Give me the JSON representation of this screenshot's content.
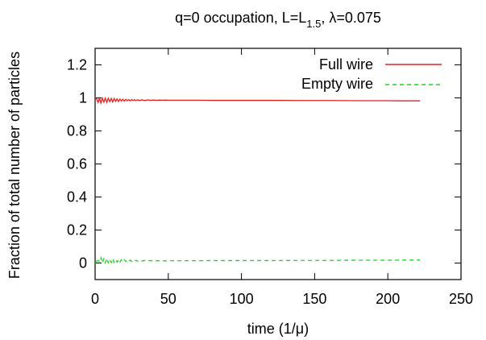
{
  "chart_data": {
    "type": "line",
    "title": {
      "prefix": "q=0 occupation, L=L",
      "subscript": "1.5",
      "suffix": ", λ=0.075"
    },
    "xlabel": "time (1/μ)",
    "ylabel": "Fraction of total number of particles",
    "xlim": [
      0,
      250
    ],
    "ylim": [
      -0.1,
      1.3
    ],
    "xticks": [
      0,
      50,
      100,
      150,
      200,
      250
    ],
    "yticks": [
      0,
      0.2,
      0.4,
      0.6,
      0.8,
      1,
      1.2
    ],
    "xtick_labels": [
      "0",
      "50",
      "100",
      "150",
      "200",
      "250"
    ],
    "ytick_labels": [
      "0",
      "0.2",
      "0.4",
      "0.6",
      "0.8",
      "1",
      "1.2"
    ],
    "grid": false,
    "legend_position": "top-right",
    "series": [
      {
        "name": "Full wire",
        "color": "#e02020",
        "style": "solid",
        "x": [
          0,
          1,
          2,
          3,
          4,
          5,
          6,
          7,
          8,
          9,
          10,
          11,
          12,
          13,
          14,
          15,
          16,
          17,
          18,
          19,
          20,
          21,
          22,
          23,
          24,
          25,
          26,
          27,
          28,
          29,
          30,
          32,
          34,
          36,
          38,
          40,
          42,
          44,
          46,
          48,
          50,
          55,
          60,
          65,
          70,
          80,
          90,
          100,
          120,
          140,
          160,
          180,
          200,
          210,
          222
        ],
        "values": [
          1.0,
          0.995,
          0.972,
          0.998,
          0.968,
          0.999,
          0.974,
          0.999,
          0.972,
          0.998,
          0.977,
          0.997,
          0.975,
          0.996,
          0.979,
          0.994,
          0.978,
          0.993,
          0.981,
          0.992,
          0.98,
          0.991,
          0.983,
          0.99,
          0.982,
          0.99,
          0.984,
          0.989,
          0.983,
          0.989,
          0.984,
          0.988,
          0.984,
          0.988,
          0.985,
          0.987,
          0.985,
          0.987,
          0.986,
          0.987,
          0.986,
          0.986,
          0.986,
          0.986,
          0.986,
          0.985,
          0.985,
          0.985,
          0.985,
          0.984,
          0.984,
          0.983,
          0.983,
          0.982,
          0.982
        ]
      },
      {
        "name": "Empty wire",
        "color": "#20d020",
        "style": "dashed",
        "x": [
          0,
          1,
          2,
          3,
          4,
          5,
          6,
          7,
          8,
          9,
          10,
          11,
          12,
          13,
          14,
          15,
          16,
          17,
          18,
          19,
          20,
          21,
          22,
          23,
          24,
          25,
          26,
          27,
          28,
          29,
          30,
          32,
          34,
          36,
          38,
          40,
          42,
          44,
          46,
          48,
          50,
          55,
          60,
          65,
          70,
          80,
          90,
          100,
          120,
          140,
          160,
          180,
          200,
          210,
          222
        ],
        "values": [
          0.0,
          0.005,
          0.028,
          0.002,
          0.032,
          0.001,
          0.026,
          0.001,
          0.028,
          0.002,
          0.023,
          0.003,
          0.025,
          0.004,
          0.021,
          0.006,
          0.022,
          0.007,
          0.019,
          0.008,
          0.02,
          0.009,
          0.017,
          0.01,
          0.018,
          0.01,
          0.016,
          0.011,
          0.017,
          0.011,
          0.016,
          0.012,
          0.016,
          0.012,
          0.015,
          0.013,
          0.015,
          0.013,
          0.014,
          0.013,
          0.014,
          0.014,
          0.014,
          0.014,
          0.014,
          0.015,
          0.015,
          0.015,
          0.015,
          0.016,
          0.016,
          0.017,
          0.017,
          0.018,
          0.018
        ]
      }
    ]
  }
}
